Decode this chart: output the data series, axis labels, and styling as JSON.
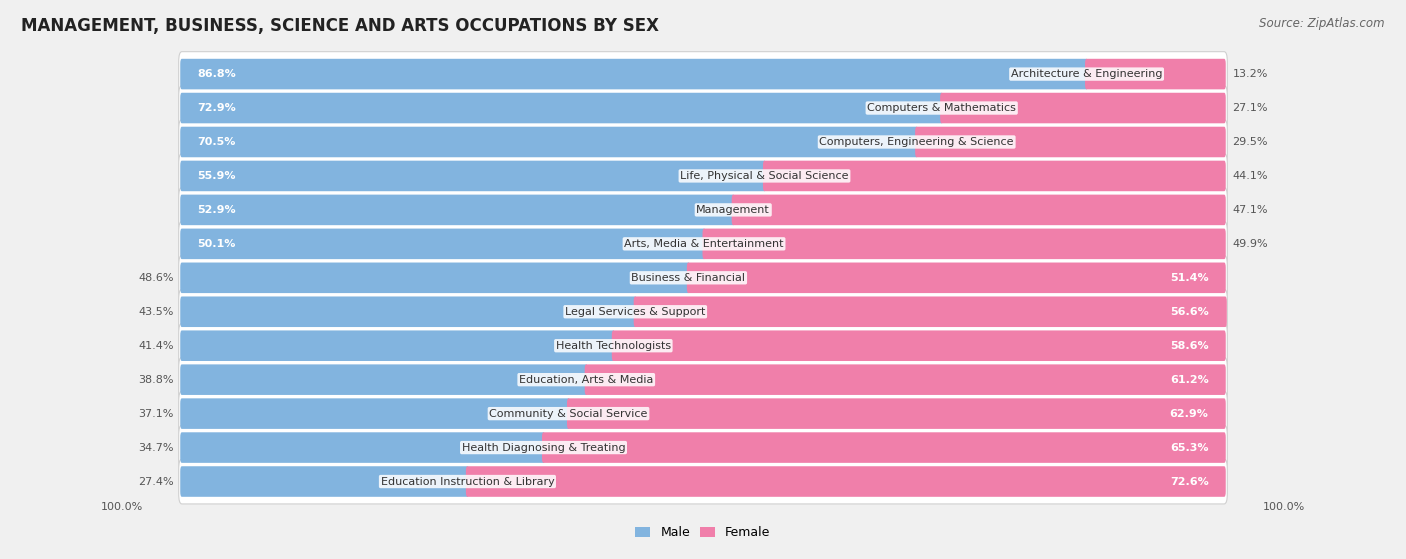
{
  "title": "MANAGEMENT, BUSINESS, SCIENCE AND ARTS OCCUPATIONS BY SEX",
  "source": "Source: ZipAtlas.com",
  "categories": [
    "Architecture & Engineering",
    "Computers & Mathematics",
    "Computers, Engineering & Science",
    "Life, Physical & Social Science",
    "Management",
    "Arts, Media & Entertainment",
    "Business & Financial",
    "Legal Services & Support",
    "Health Technologists",
    "Education, Arts & Media",
    "Community & Social Service",
    "Health Diagnosing & Treating",
    "Education Instruction & Library"
  ],
  "male": [
    86.8,
    72.9,
    70.5,
    55.9,
    52.9,
    50.1,
    48.6,
    43.5,
    41.4,
    38.8,
    37.1,
    34.7,
    27.4
  ],
  "female": [
    13.2,
    27.1,
    29.5,
    44.1,
    47.1,
    49.9,
    51.4,
    56.6,
    58.6,
    61.2,
    62.9,
    65.3,
    72.6
  ],
  "male_color": "#82b4df",
  "female_color": "#f07faa",
  "bg_color": "#f0f0f0",
  "row_bg_color": "#ffffff",
  "row_border_color": "#d0d0d0",
  "title_fontsize": 12,
  "source_fontsize": 8.5,
  "cat_label_fontsize": 8.0,
  "pct_label_fontsize": 8.0,
  "legend_fontsize": 9,
  "axis_label_fontsize": 8.0
}
